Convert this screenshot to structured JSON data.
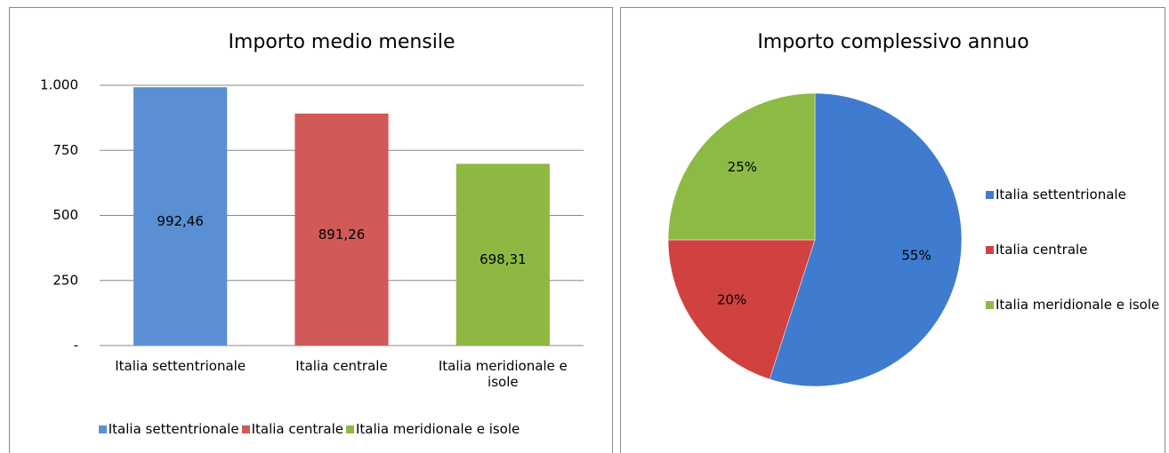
{
  "chart_data": [
    {
      "type": "bar",
      "title": "Importo medio mensile",
      "categories": [
        "Italia settentrionale",
        "Italia centrale",
        "Italia meridionale e isole"
      ],
      "values": [
        992.46,
        891.26,
        698.31
      ],
      "value_labels": [
        "992,46",
        "891,26",
        "698,31"
      ],
      "colors": [
        "#5a8fd4",
        "#d05a57",
        "#8fb843"
      ],
      "ylim": [
        0,
        1000
      ],
      "yticks": [
        {
          "value": 0,
          "label": "-"
        },
        250,
        500,
        750,
        {
          "value": 1000,
          "label": "1.000"
        }
      ],
      "grid": true,
      "legend": "bottom"
    },
    {
      "type": "pie",
      "title": "Importo complessivo annuo",
      "categories": [
        "Italia settentrionale",
        "Italia centrale",
        "Italia meridionale e isole"
      ],
      "values": [
        55,
        20,
        25
      ],
      "value_labels": [
        "55%",
        "20%",
        "25%"
      ],
      "colors": [
        "#3f7bcf",
        "#d04140",
        "#8dba45"
      ],
      "legend": "right"
    }
  ]
}
